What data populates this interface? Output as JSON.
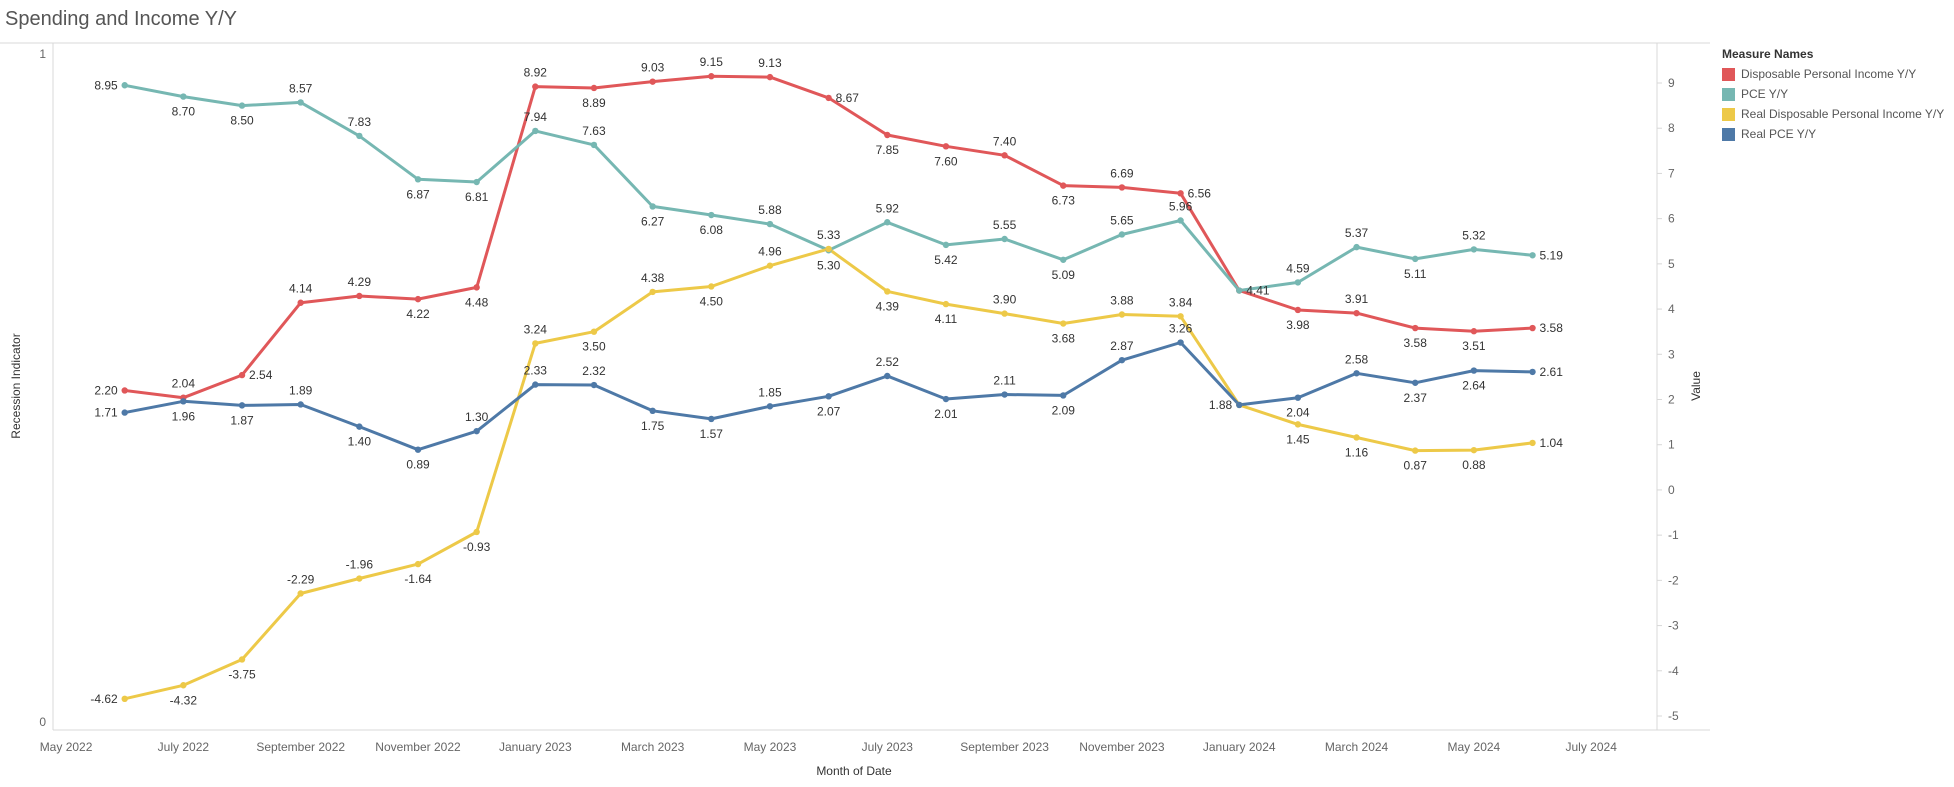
{
  "title": "Spending and Income Y/Y",
  "legend": {
    "title": "Measure Names",
    "items": [
      {
        "label": "Disposable Personal Income Y/Y",
        "color": "#e05759"
      },
      {
        "label": "PCE Y/Y",
        "color": "#76b7b2"
      },
      {
        "label": "Real Disposable Personal Income Y/Y",
        "color": "#edc948"
      },
      {
        "label": "Real PCE Y/Y",
        "color": "#4e79a7"
      }
    ]
  },
  "chart_data": {
    "type": "line",
    "xlabel": "Month of Date",
    "ylabel_left": "Recession Indicator",
    "ylabel_right": "Value",
    "left_axis": {
      "ylim": [
        0,
        1
      ],
      "ticks": [
        "0",
        "1"
      ]
    },
    "right_axis": {
      "ylim": [
        -5.3,
        9.8
      ],
      "ticks": [
        9,
        8,
        7,
        6,
        5,
        4,
        3,
        2,
        1,
        0,
        -1,
        -2,
        -3,
        -4,
        -5
      ]
    },
    "x_tick_labels": [
      "May 2022",
      "July 2022",
      "September 2022",
      "November 2022",
      "January 2023",
      "March 2023",
      "May 2023",
      "July 2023",
      "September 2023",
      "November 2023",
      "January 2024",
      "March 2024",
      "May 2024",
      "July 2024"
    ],
    "x": [
      "Jun 2022",
      "Jul 2022",
      "Aug 2022",
      "Sep 2022",
      "Oct 2022",
      "Nov 2022",
      "Dec 2022",
      "Jan 2023",
      "Feb 2023",
      "Mar 2023",
      "Apr 2023",
      "May 2023",
      "Jun 2023",
      "Jul 2023",
      "Aug 2023",
      "Sep 2023",
      "Oct 2023",
      "Nov 2023",
      "Dec 2023",
      "Jan 2024",
      "Feb 2024",
      "Mar 2024",
      "Apr 2024",
      "May 2024",
      "Jun 2024"
    ],
    "series": [
      {
        "name": "Disposable Personal Income Y/Y",
        "color": "#e05759",
        "values": [
          2.2,
          2.04,
          2.54,
          4.14,
          4.29,
          4.22,
          4.48,
          8.92,
          8.89,
          9.03,
          9.15,
          9.13,
          8.67,
          7.85,
          7.6,
          7.4,
          6.73,
          6.69,
          6.56,
          4.41,
          3.98,
          3.91,
          3.58,
          3.51,
          3.58
        ]
      },
      {
        "name": "PCE Y/Y",
        "color": "#76b7b2",
        "values": [
          8.95,
          8.7,
          8.5,
          8.57,
          7.83,
          6.87,
          6.81,
          7.94,
          7.63,
          6.27,
          6.08,
          5.88,
          5.3,
          5.92,
          5.42,
          5.55,
          5.09,
          5.65,
          5.96,
          4.41,
          4.59,
          5.37,
          5.11,
          5.32,
          5.19
        ]
      },
      {
        "name": "Real Disposable Personal Income Y/Y",
        "color": "#edc948",
        "values": [
          -4.62,
          -4.32,
          -3.75,
          -2.29,
          -1.96,
          -1.64,
          -0.93,
          3.24,
          3.5,
          4.38,
          4.5,
          4.96,
          5.33,
          4.39,
          4.11,
          3.9,
          3.68,
          3.88,
          3.84,
          1.88,
          1.45,
          1.16,
          0.87,
          0.88,
          1.04
        ]
      },
      {
        "name": "Real PCE Y/Y",
        "color": "#4e79a7",
        "values": [
          1.71,
          1.96,
          1.87,
          1.89,
          1.4,
          0.89,
          1.3,
          2.33,
          2.32,
          1.75,
          1.57,
          1.85,
          2.07,
          2.52,
          2.01,
          2.11,
          2.09,
          2.87,
          3.26,
          1.88,
          2.04,
          2.58,
          2.37,
          2.64,
          2.61
        ]
      }
    ],
    "data_labels": [
      [
        "2.20",
        "2.04",
        "2.54",
        "4.14",
        "4.29",
        "4.22",
        "4.48",
        "8.92",
        "8.89",
        "9.03",
        "9.15",
        "9.13",
        "8.67",
        "7.85",
        "7.60",
        "7.40",
        "6.73",
        "6.69",
        "6.56",
        "4.41",
        "3.98",
        "3.91",
        "3.58",
        "3.51",
        "3.58"
      ],
      [
        "8.95",
        "8.70",
        "8.50",
        "8.57",
        "7.83",
        "6.87",
        "6.81",
        "7.94",
        "7.63",
        "6.27",
        "6.08",
        "5.88",
        "5.30",
        "5.92",
        "5.42",
        "5.55",
        "5.09",
        "5.65",
        "5.96",
        "",
        "4.59",
        "5.37",
        "5.11",
        "5.32",
        "5.19"
      ],
      [
        "-4.62",
        "-4.32",
        "-3.75",
        "-2.29",
        "-1.96",
        "-1.64",
        "-0.93",
        "3.24",
        "3.50",
        "4.38",
        "4.50",
        "4.96",
        "5.33",
        "4.39",
        "4.11",
        "3.90",
        "3.68",
        "3.88",
        "3.84",
        "",
        "1.45",
        "1.16",
        "0.87",
        "0.88",
        "1.04"
      ],
      [
        "1.71",
        "1.96",
        "1.87",
        "1.89",
        "1.40",
        "0.89",
        "1.30",
        "2.33",
        "2.32",
        "1.75",
        "1.57",
        "1.85",
        "2.07",
        "2.52",
        "2.01",
        "2.11",
        "2.09",
        "2.87",
        "3.26",
        "1.88",
        "2.04",
        "2.58",
        "2.37",
        "2.64",
        "2.61"
      ]
    ],
    "grid": false,
    "legend_position": "right"
  }
}
